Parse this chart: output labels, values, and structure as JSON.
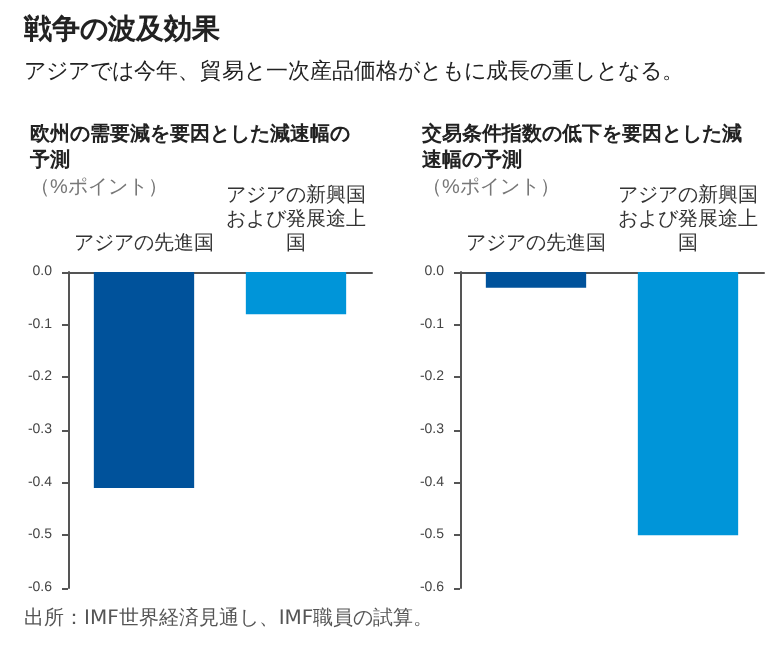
{
  "chart_data": [
    {
      "type": "other",
      "title": "戦争の波及効果",
      "subtitle": "アジアでは今年、貿易と一次産品価格がともに成長の重しとなる。",
      "annotations": [
        "出所：IMF世界経済見通し、IMF職員の試算。"
      ]
    },
    {
      "type": "bar",
      "title": "欧州の需要減を要因とした減速幅の予測",
      "ylabel": "（%ポイント）",
      "categories": [
        "アジアの先進国",
        "アジアの新興国および発展途上国"
      ],
      "values": [
        -0.41,
        -0.08
      ],
      "colors": [
        "#00529b",
        "#0095d9"
      ],
      "ylim": [
        -0.6,
        0
      ],
      "yticks": [
        {
          "value": 0,
          "label": "0.0"
        },
        {
          "value": -0.1,
          "label": "-0.1"
        },
        {
          "value": -0.2,
          "label": "-0.2"
        },
        {
          "value": -0.3,
          "label": "-0.3"
        },
        {
          "value": -0.4,
          "label": "-0.4"
        },
        {
          "value": -0.5,
          "label": "-0.5"
        },
        {
          "value": -0.6,
          "label": "-0.6"
        }
      ]
    },
    {
      "type": "bar",
      "title": "交易条件指数の低下を要因とした減速幅の予測",
      "ylabel": "（%ポイント）",
      "categories": [
        "アジアの先進国",
        "アジアの新興国および発展途上国"
      ],
      "values": [
        -0.03,
        -0.5
      ],
      "colors": [
        "#00529b",
        "#0095d9"
      ],
      "ylim": [
        -0.6,
        0
      ],
      "yticks": [
        {
          "value": 0,
          "label": "0.0"
        },
        {
          "value": -0.1,
          "label": "-0.1"
        },
        {
          "value": -0.2,
          "label": "-0.2"
        },
        {
          "value": -0.3,
          "label": "-0.3"
        },
        {
          "value": -0.4,
          "label": "-0.4"
        },
        {
          "value": -0.5,
          "label": "-0.5"
        },
        {
          "value": -0.6,
          "label": "-0.6"
        }
      ]
    }
  ]
}
